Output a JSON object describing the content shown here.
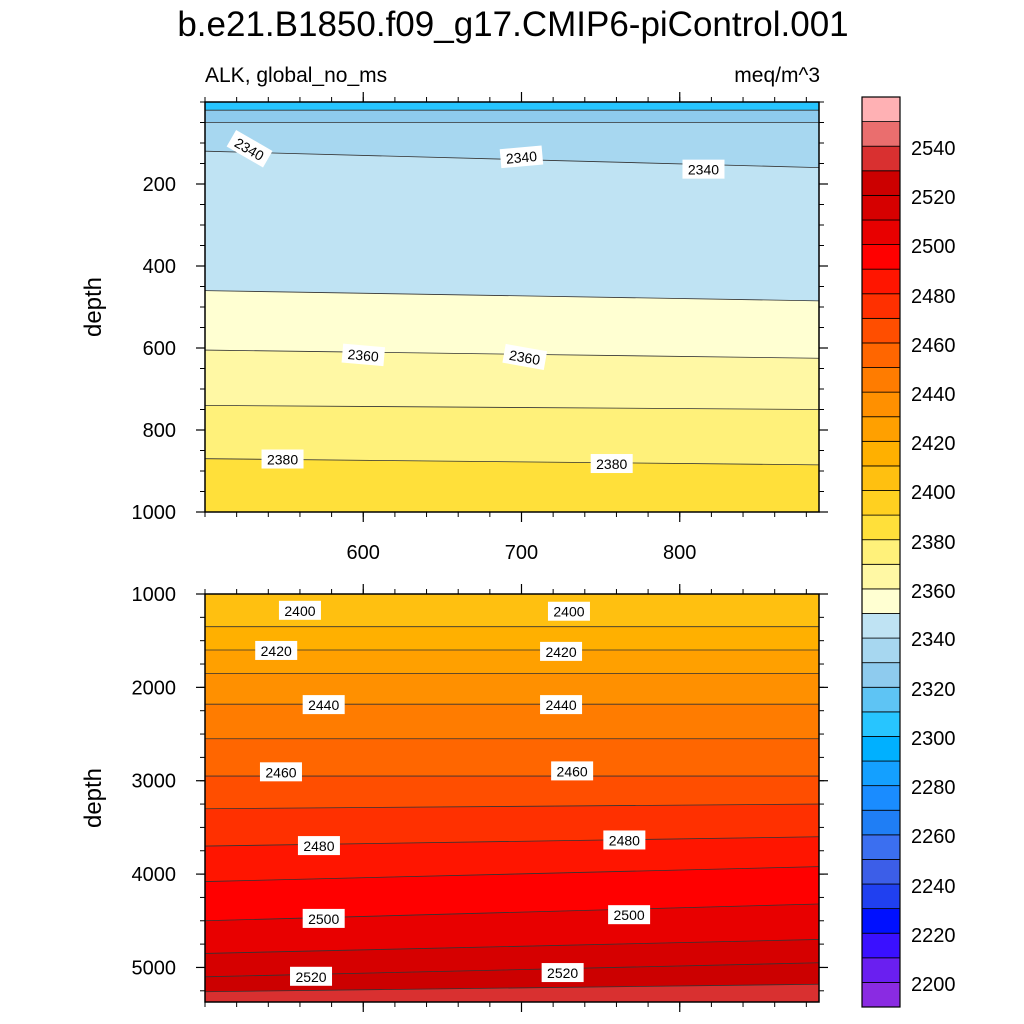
{
  "chart_data": {
    "type": "contour",
    "title": "b.e21.B1850.f09_g17.CMIP6-piControl.001",
    "left_subtitle": "ALK, global_no_ms",
    "right_subtitle": "meq/m^3",
    "xlabel": "",
    "xlim": [
      500,
      888
    ],
    "x_tick_labels": [
      "600",
      "700",
      "800"
    ],
    "x_ticks": [
      600,
      700,
      800
    ],
    "panels": [
      {
        "name": "upper",
        "ylabel": "depth",
        "ylim": [
          0,
          1000
        ],
        "y_tick_labels": [
          "200",
          "400",
          "600",
          "800",
          "1000"
        ],
        "y_ticks": [
          200,
          400,
          600,
          800,
          1000
        ],
        "bands": [
          {
            "from_depth": [
              0,
              0
            ],
            "to_depth": [
              20,
              20
            ],
            "value": 2300
          },
          {
            "from_depth": [
              20,
              20
            ],
            "to_depth": [
              50,
              50
            ],
            "value": 2320
          },
          {
            "from_depth": [
              50,
              50
            ],
            "to_depth": [
              120,
              160
            ],
            "value": 2330
          },
          {
            "from_depth": [
              120,
              160
            ],
            "to_depth": [
              460,
              485
            ],
            "value": 2345
          },
          {
            "from_depth": [
              460,
              485
            ],
            "to_depth": [
              605,
              625
            ],
            "value": 2355
          },
          {
            "from_depth": [
              605,
              625
            ],
            "to_depth": [
              740,
              750
            ],
            "value": 2365
          },
          {
            "from_depth": [
              740,
              750
            ],
            "to_depth": [
              870,
              885
            ],
            "value": 2375
          },
          {
            "from_depth": [
              870,
              885
            ],
            "to_depth": [
              1000,
              1000
            ],
            "value": 2385
          }
        ],
        "contour_labels": [
          {
            "text": "2340",
            "x": 528,
            "depth": 115,
            "angle": 30
          },
          {
            "text": "2340",
            "x": 700,
            "depth": 135,
            "angle": -5
          },
          {
            "text": "2340",
            "x": 815,
            "depth": 165,
            "angle": 0
          },
          {
            "text": "2360",
            "x": 600,
            "depth": 618,
            "angle": 5
          },
          {
            "text": "2360",
            "x": 702,
            "depth": 623,
            "angle": 10
          },
          {
            "text": "2380",
            "x": 549,
            "depth": 872,
            "angle": 0
          },
          {
            "text": "2380",
            "x": 757,
            "depth": 883,
            "angle": 0
          }
        ]
      },
      {
        "name": "lower",
        "ylabel": "depth",
        "ylim": [
          1000,
          5370
        ],
        "y_tick_labels": [
          "1000",
          "2000",
          "3000",
          "4000",
          "5000"
        ],
        "y_ticks": [
          1000,
          2000,
          3000,
          4000,
          5000
        ],
        "bands": [
          {
            "from_depth": [
              1000,
              1000
            ],
            "to_depth": [
              1350,
              1350
            ],
            "value": 2405
          },
          {
            "from_depth": [
              1350,
              1350
            ],
            "to_depth": [
              1600,
              1600
            ],
            "value": 2415
          },
          {
            "from_depth": [
              1600,
              1600
            ],
            "to_depth": [
              1850,
              1850
            ],
            "value": 2425
          },
          {
            "from_depth": [
              1850,
              1850
            ],
            "to_depth": [
              2180,
              2180
            ],
            "value": 2435
          },
          {
            "from_depth": [
              2180,
              2180
            ],
            "to_depth": [
              2550,
              2550
            ],
            "value": 2445
          },
          {
            "from_depth": [
              2550,
              2550
            ],
            "to_depth": [
              2950,
              2950
            ],
            "value": 2455
          },
          {
            "from_depth": [
              2950,
              2950
            ],
            "to_depth": [
              3300,
              3250
            ],
            "value": 2465
          },
          {
            "from_depth": [
              3300,
              3250
            ],
            "to_depth": [
              3700,
              3600
            ],
            "value": 2475
          },
          {
            "from_depth": [
              3700,
              3600
            ],
            "to_depth": [
              4080,
              3920
            ],
            "value": 2485
          },
          {
            "from_depth": [
              4080,
              3920
            ],
            "to_depth": [
              4500,
              4320
            ],
            "value": 2495
          },
          {
            "from_depth": [
              4500,
              4320
            ],
            "to_depth": [
              4850,
              4700
            ],
            "value": 2505
          },
          {
            "from_depth": [
              4850,
              4700
            ],
            "to_depth": [
              5100,
              4950
            ],
            "value": 2515
          },
          {
            "from_depth": [
              5100,
              4950
            ],
            "to_depth": [
              5260,
              5180
            ],
            "value": 2525
          },
          {
            "from_depth": [
              5260,
              5180
            ],
            "to_depth": [
              5370,
              5370
            ],
            "value": 2535
          }
        ],
        "contour_labels": [
          {
            "text": "2400",
            "x": 560,
            "depth": 1180,
            "angle": 0
          },
          {
            "text": "2400",
            "x": 730,
            "depth": 1190,
            "angle": 0
          },
          {
            "text": "2420",
            "x": 545,
            "depth": 1610,
            "angle": 0
          },
          {
            "text": "2420",
            "x": 725,
            "depth": 1620,
            "angle": 0
          },
          {
            "text": "2440",
            "x": 575,
            "depth": 2190,
            "angle": 0
          },
          {
            "text": "2440",
            "x": 725,
            "depth": 2190,
            "angle": 0
          },
          {
            "text": "2460",
            "x": 548,
            "depth": 2910,
            "angle": 0
          },
          {
            "text": "2460",
            "x": 732,
            "depth": 2900,
            "angle": 0
          },
          {
            "text": "2480",
            "x": 572,
            "depth": 3700,
            "angle": 0
          },
          {
            "text": "2480",
            "x": 765,
            "depth": 3640,
            "angle": 0
          },
          {
            "text": "2500",
            "x": 575,
            "depth": 4480,
            "angle": 0
          },
          {
            "text": "2500",
            "x": 768,
            "depth": 4440,
            "angle": 0
          },
          {
            "text": "2520",
            "x": 567,
            "depth": 5100,
            "angle": 0
          },
          {
            "text": "2520",
            "x": 726,
            "depth": 5060,
            "angle": 0
          }
        ]
      }
    ],
    "colorbar": {
      "tick_labels": [
        "2200",
        "2220",
        "2240",
        "2260",
        "2280",
        "2300",
        "2320",
        "2340",
        "2360",
        "2380",
        "2400",
        "2420",
        "2440",
        "2460",
        "2480",
        "2500",
        "2520",
        "2540"
      ],
      "levels": [
        2190,
        2560
      ],
      "colors": [
        "#8a2be2",
        "#6a1ff0",
        "#3a10ff",
        "#0010ff",
        "#2040f0",
        "#3c5ee8",
        "#3b6ff0",
        "#1f7ef5",
        "#1a8cff",
        "#14a0ff",
        "#00b0ff",
        "#27c5ff",
        "#5ec4f4",
        "#8ecbee",
        "#a7d7f0",
        "#bfe3f3",
        "#ffffd2",
        "#fff8a4",
        "#fff17a",
        "#ffe03a",
        "#ffd020",
        "#ffc010",
        "#ffb000",
        "#ffa000",
        "#ff9000",
        "#ff7c00",
        "#ff6600",
        "#ff4e00",
        "#ff3000",
        "#ff1500",
        "#ff0000",
        "#e80000",
        "#d60000",
        "#cc0000",
        "#d93030",
        "#ea6e6e",
        "#ffb1b4"
      ]
    }
  }
}
